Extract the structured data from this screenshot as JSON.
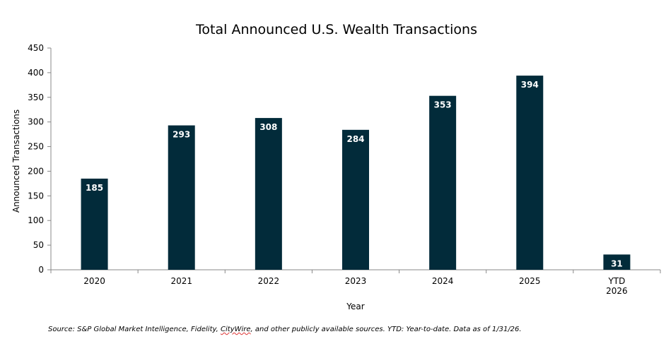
{
  "chart_data": {
    "type": "bar",
    "title": "Total Announced U.S. Wealth Transactions",
    "xlabel": "Year",
    "ylabel": "Announced Transactions",
    "categories": [
      [
        "2020"
      ],
      [
        "2021"
      ],
      [
        "2022"
      ],
      [
        "2023"
      ],
      [
        "2024"
      ],
      [
        "2025"
      ],
      [
        "YTD",
        "2026"
      ]
    ],
    "values": [
      185,
      293,
      308,
      284,
      353,
      394,
      31
    ],
    "data_labels": [
      "185",
      "293",
      "308",
      "284",
      "353",
      "394",
      "31"
    ],
    "ylim": [
      0,
      450
    ],
    "yticks": [
      0,
      50,
      100,
      150,
      200,
      250,
      300,
      350,
      400,
      450
    ],
    "ytick_labels": [
      "0",
      "50",
      "100",
      "150",
      "200",
      "250",
      "300",
      "350",
      "400",
      "450"
    ],
    "grid": false,
    "legend": "none"
  },
  "colors": {
    "bar": "#022b3a",
    "axis": "#888888",
    "bar_label": "#ffffff"
  },
  "footnote": {
    "part1": "Source: S&P Global Market Intelligence, Fidelity, ",
    "underlined": "CityWire",
    "part2": ", and other publicly available sources. YTD: Year-to-date. Data as of 1/31/26."
  }
}
